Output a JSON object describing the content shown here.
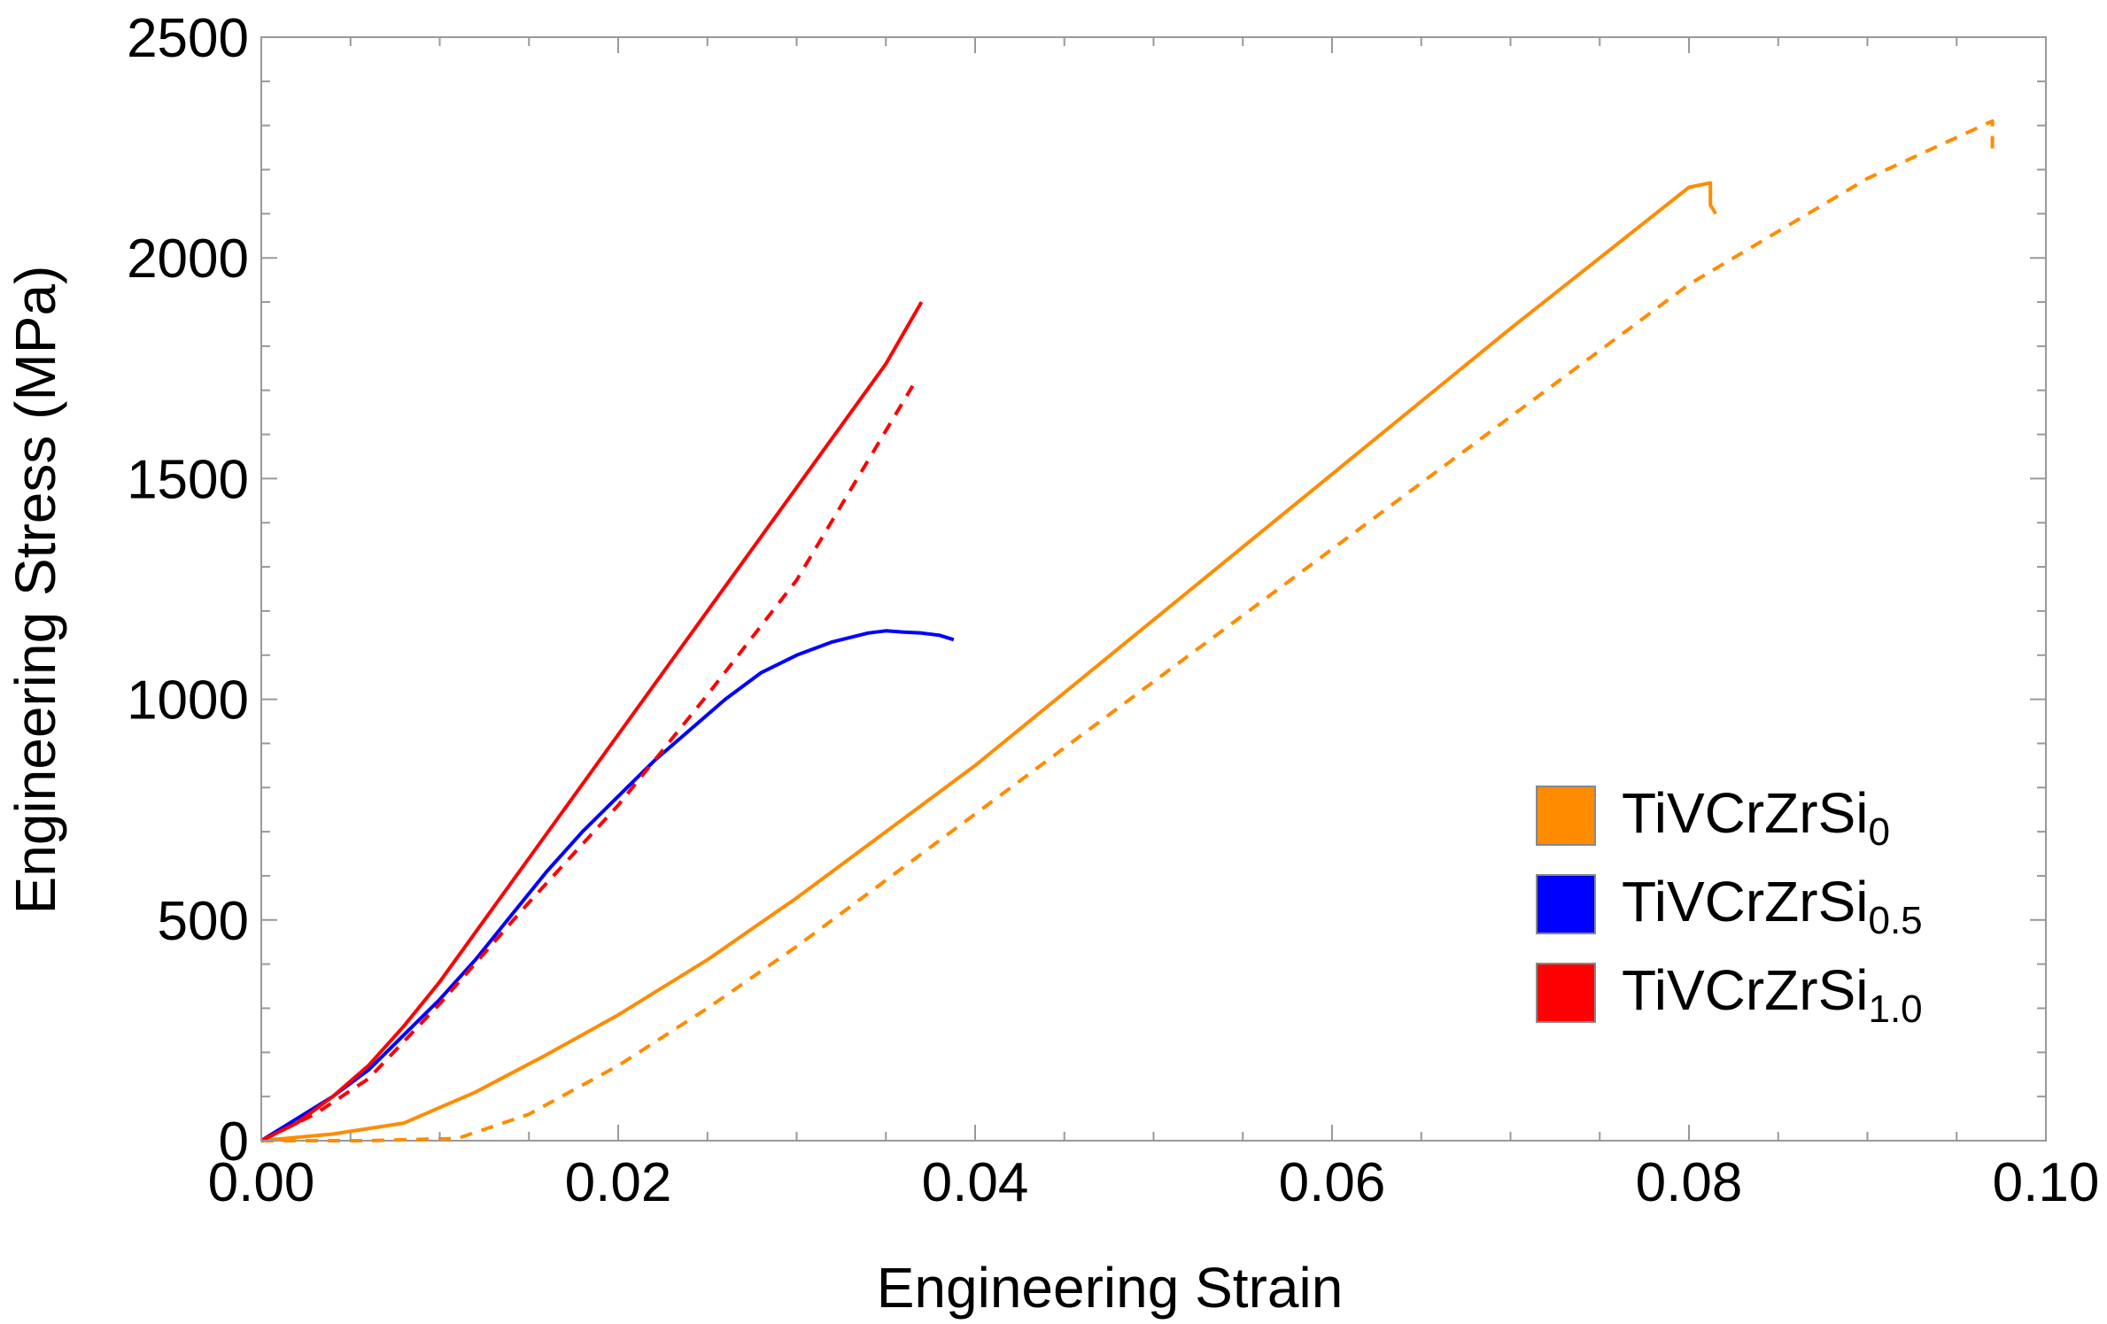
{
  "chart_data": {
    "type": "line",
    "title": "",
    "xlabel": "Engineering Strain",
    "ylabel": "Engineering Stress (MPa)",
    "xlim": [
      0.0,
      0.1
    ],
    "ylim": [
      0,
      2500
    ],
    "xticks": [
      0.0,
      0.02,
      0.04,
      0.06,
      0.08,
      0.1
    ],
    "xtick_labels": [
      "0.00",
      "0.02",
      "0.04",
      "0.06",
      "0.08",
      "0.10"
    ],
    "yticks": [
      0,
      500,
      1000,
      1500,
      2000,
      2500
    ],
    "ytick_labels": [
      "0",
      "500",
      "1000",
      "1500",
      "2000",
      "2500"
    ],
    "grid": false,
    "legend_position": "bottom-right",
    "legend": [
      {
        "base": "TiVCrZrSi",
        "sub": "0",
        "color": "#FF8C00"
      },
      {
        "base": "TiVCrZrSi",
        "sub": "0.5",
        "color": "#0000FF"
      },
      {
        "base": "TiVCrZrSi",
        "sub": "1.0",
        "color": "#FF0000"
      }
    ],
    "series": [
      {
        "name": "TiVCrZrSi0 (solid)",
        "color": "#FF8C00",
        "dash": "solid",
        "x": [
          0.0,
          0.004,
          0.008,
          0.012,
          0.016,
          0.02,
          0.025,
          0.03,
          0.035,
          0.04,
          0.05,
          0.06,
          0.07,
          0.08,
          0.0812,
          0.0812,
          0.0815
        ],
        "y": [
          0,
          15,
          40,
          110,
          195,
          285,
          410,
          550,
          700,
          850,
          1180,
          1510,
          1840,
          2160,
          2170,
          2120,
          2100
        ]
      },
      {
        "name": "TiVCrZrSi0 (dashed)",
        "color": "#FF8C00",
        "dash": "dashed",
        "x": [
          0.0,
          0.006,
          0.011,
          0.015,
          0.02,
          0.025,
          0.03,
          0.035,
          0.04,
          0.05,
          0.06,
          0.07,
          0.08,
          0.09,
          0.097,
          0.097
        ],
        "y": [
          0,
          0,
          5,
          60,
          170,
          300,
          440,
          590,
          740,
          1040,
          1340,
          1640,
          1940,
          2180,
          2310,
          2240
        ]
      },
      {
        "name": "TiVCrZrSi0.5",
        "color": "#0000FF",
        "dash": "solid",
        "x": [
          0.0,
          0.002,
          0.004,
          0.006,
          0.008,
          0.01,
          0.012,
          0.014,
          0.016,
          0.018,
          0.02,
          0.022,
          0.024,
          0.026,
          0.028,
          0.03,
          0.032,
          0.034,
          0.035,
          0.036,
          0.037,
          0.038,
          0.0388
        ],
        "y": [
          0,
          50,
          100,
          160,
          240,
          320,
          410,
          510,
          610,
          700,
          780,
          860,
          930,
          1000,
          1060,
          1100,
          1130,
          1150,
          1155,
          1152,
          1150,
          1145,
          1135
        ]
      },
      {
        "name": "TiVCrZrSi1.0 (solid)",
        "color": "#FF0000",
        "dash": "solid",
        "x": [
          0.0,
          0.002,
          0.004,
          0.006,
          0.008,
          0.01,
          0.015,
          0.02,
          0.025,
          0.03,
          0.035,
          0.037
        ],
        "y": [
          0,
          40,
          100,
          170,
          260,
          360,
          640,
          920,
          1200,
          1480,
          1760,
          1900
        ]
      },
      {
        "name": "TiVCrZrSi1.0 (dashed)",
        "color": "#FF0000",
        "dash": "dashed",
        "x": [
          0.0,
          0.003,
          0.006,
          0.01,
          0.015,
          0.02,
          0.025,
          0.03,
          0.0365
        ],
        "y": [
          0,
          60,
          140,
          310,
          540,
          760,
          1010,
          1270,
          1710
        ]
      }
    ]
  }
}
